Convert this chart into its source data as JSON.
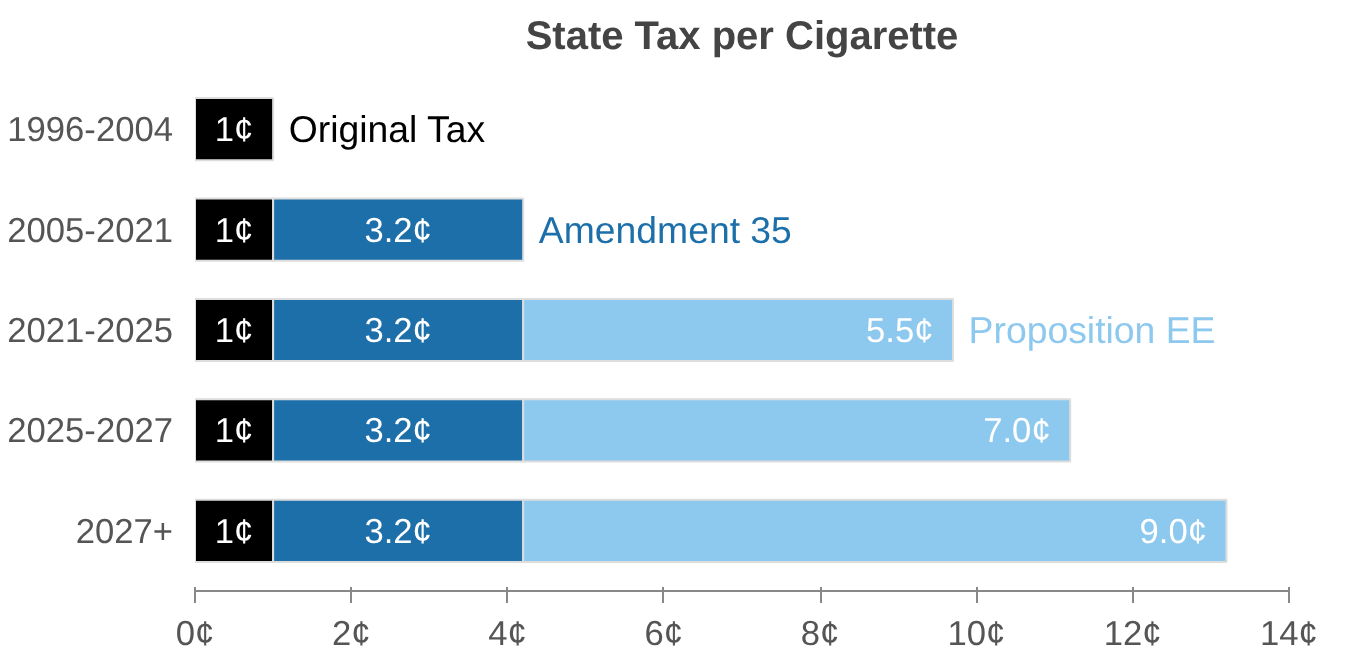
{
  "chart_data": {
    "type": "bar",
    "orientation": "horizontal",
    "stacked": true,
    "title": "State Tax per Cigarette",
    "categories": [
      "1996-2004",
      "2005-2021",
      "2021-2025",
      "2025-2027",
      "2027+"
    ],
    "series": [
      {
        "name": "Original Tax",
        "color": "#000000",
        "values": [
          1,
          1,
          1,
          1,
          1
        ],
        "value_labels": [
          "1¢",
          "1¢",
          "1¢",
          "1¢",
          "1¢"
        ]
      },
      {
        "name": "Amendment 35",
        "color": "#1c6fa9",
        "values": [
          null,
          3.2,
          3.2,
          3.2,
          3.2
        ],
        "value_labels": [
          null,
          "3.2¢",
          "3.2¢",
          "3.2¢",
          "3.2¢"
        ]
      },
      {
        "name": "Proposition EE",
        "color": "#8dc8ee",
        "values": [
          null,
          null,
          5.5,
          7.0,
          9.0
        ],
        "value_labels": [
          null,
          null,
          "5.5¢",
          "7.0¢",
          "9.0¢"
        ]
      }
    ],
    "xlim": [
      0,
      14
    ],
    "xticks": [
      {
        "value": 0,
        "label": "0¢"
      },
      {
        "value": 2,
        "label": "2¢"
      },
      {
        "value": 4,
        "label": "4¢"
      },
      {
        "value": 6,
        "label": "6¢"
      },
      {
        "value": 8,
        "label": "8¢"
      },
      {
        "value": 10,
        "label": "10¢"
      },
      {
        "value": 12,
        "label": "12¢"
      },
      {
        "value": 14,
        "label": "14¢"
      }
    ],
    "grid": false
  }
}
